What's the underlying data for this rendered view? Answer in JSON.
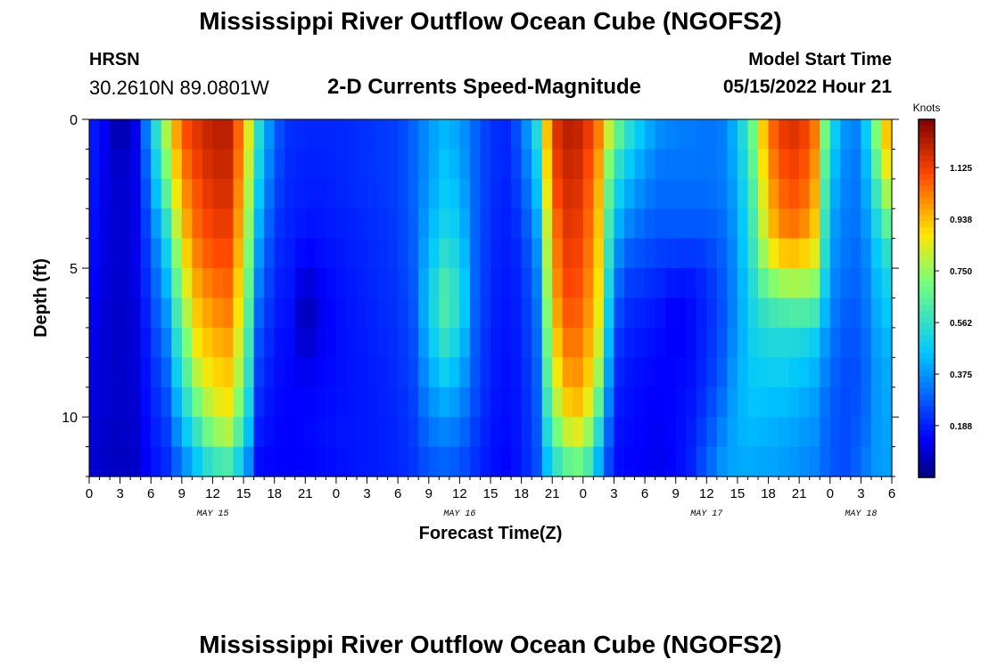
{
  "header": {
    "title": "Mississippi River Outflow Ocean Cube (NGOFS2)",
    "station_id": "HRSN",
    "station_coords": "30.2610N  89.0801W",
    "plot_subtitle": "2-D Currents Speed-Magnitude",
    "model_start_label": "Model Start Time",
    "model_start_value": "05/15/2022 Hour 21"
  },
  "footer": {
    "title": "Mississippi River Outflow Ocean Cube (NGOFS2)"
  },
  "chart_data": {
    "type": "heatmap",
    "title": "2-D Currents Speed-Magnitude",
    "xlabel": "Forecast Time(Z)",
    "ylabel": "Depth (ft)",
    "x_unit": "hours since May 15 00Z",
    "xlim": [
      0,
      78
    ],
    "ylim": [
      0,
      12
    ],
    "x_ticks": [
      0,
      3,
      6,
      9,
      12,
      15,
      18,
      21,
      24,
      27,
      30,
      33,
      36,
      39,
      42,
      45,
      48,
      51,
      54,
      57,
      60,
      63,
      66,
      69,
      72,
      75,
      78
    ],
    "x_tick_labels": [
      "0",
      "3",
      "6",
      "9",
      "12",
      "15",
      "18",
      "21",
      "0",
      "3",
      "6",
      "9",
      "12",
      "15",
      "18",
      "21",
      "0",
      "3",
      "6",
      "9",
      "12",
      "15",
      "18",
      "21",
      "0",
      "3",
      "6"
    ],
    "date_labels": [
      {
        "text": "MAY 15",
        "x": 12
      },
      {
        "text": "MAY 16",
        "x": 36
      },
      {
        "text": "MAY 17",
        "x": 60
      },
      {
        "text": "MAY 18",
        "x": 75
      }
    ],
    "y_ticks": [
      0,
      5,
      10
    ],
    "y_tick_labels": [
      "0",
      "5",
      "10"
    ],
    "colorbar": {
      "label": "Knots",
      "min": 0,
      "max": 1.3,
      "ticks": [
        0.188,
        0.375,
        0.562,
        0.75,
        0.938,
        1.125
      ],
      "tick_labels": [
        "0.188",
        "0.375",
        "0.562",
        "0.750",
        "0.938",
        "1.125"
      ]
    },
    "depths_ft": [
      0,
      1,
      2,
      3,
      4,
      5,
      6,
      7,
      8,
      9,
      10,
      11,
      12
    ],
    "speed_profiles": [
      {
        "x": 0,
        "values": [
          0.2,
          0.2,
          0.2,
          0.19,
          0.18,
          0.17,
          0.15,
          0.13,
          0.12,
          0.12,
          0.11,
          0.1,
          0.09
        ]
      },
      {
        "x": 1.5,
        "values": [
          0.13,
          0.13,
          0.12,
          0.12,
          0.11,
          0.11,
          0.1,
          0.1,
          0.09,
          0.09,
          0.09,
          0.08,
          0.08
        ]
      },
      {
        "x": 3,
        "values": [
          0.02,
          0.05,
          0.08,
          0.08,
          0.08,
          0.08,
          0.08,
          0.08,
          0.08,
          0.08,
          0.08,
          0.07,
          0.07
        ]
      },
      {
        "x": 4.5,
        "values": [
          0.12,
          0.12,
          0.12,
          0.12,
          0.12,
          0.12,
          0.11,
          0.1,
          0.1,
          0.1,
          0.09,
          0.09,
          0.08
        ]
      },
      {
        "x": 6,
        "values": [
          0.45,
          0.4,
          0.36,
          0.32,
          0.28,
          0.26,
          0.24,
          0.22,
          0.2,
          0.19,
          0.18,
          0.17,
          0.15
        ]
      },
      {
        "x": 7.5,
        "values": [
          0.8,
          0.75,
          0.7,
          0.6,
          0.52,
          0.46,
          0.4,
          0.36,
          0.32,
          0.28,
          0.25,
          0.22,
          0.2
        ]
      },
      {
        "x": 9,
        "values": [
          1.1,
          1.05,
          1.0,
          0.95,
          0.9,
          0.82,
          0.75,
          0.68,
          0.6,
          0.54,
          0.45,
          0.38,
          0.3
        ]
      },
      {
        "x": 10.5,
        "values": [
          1.15,
          1.15,
          1.1,
          1.08,
          1.05,
          1.0,
          0.95,
          0.9,
          0.85,
          0.75,
          0.65,
          0.52,
          0.42
        ]
      },
      {
        "x": 12,
        "values": [
          1.22,
          1.2,
          1.18,
          1.15,
          1.12,
          1.08,
          1.02,
          0.98,
          0.92,
          0.88,
          0.8,
          0.68,
          0.5
        ]
      },
      {
        "x": 13.5,
        "values": [
          1.22,
          1.2,
          1.18,
          1.15,
          1.12,
          1.08,
          1.05,
          1.0,
          0.95,
          0.9,
          0.85,
          0.72,
          0.52
        ]
      },
      {
        "x": 15,
        "values": [
          1.0,
          0.98,
          0.95,
          0.92,
          0.9,
          0.86,
          0.82,
          0.78,
          0.74,
          0.7,
          0.62,
          0.52,
          0.4
        ]
      },
      {
        "x": 16.5,
        "values": [
          0.55,
          0.52,
          0.48,
          0.44,
          0.4,
          0.36,
          0.32,
          0.28,
          0.25,
          0.22,
          0.2,
          0.17,
          0.15
        ]
      },
      {
        "x": 18,
        "values": [
          0.3,
          0.28,
          0.26,
          0.24,
          0.22,
          0.2,
          0.19,
          0.18,
          0.17,
          0.16,
          0.15,
          0.15,
          0.14
        ]
      },
      {
        "x": 19.5,
        "values": [
          0.22,
          0.21,
          0.2,
          0.2,
          0.19,
          0.18,
          0.17,
          0.16,
          0.15,
          0.15,
          0.14,
          0.14,
          0.14
        ]
      },
      {
        "x": 21,
        "values": [
          0.2,
          0.2,
          0.19,
          0.18,
          0.16,
          0.12,
          0.05,
          0.04,
          0.1,
          0.14,
          0.15,
          0.15,
          0.14
        ]
      },
      {
        "x": 22.5,
        "values": [
          0.2,
          0.2,
          0.19,
          0.18,
          0.17,
          0.15,
          0.12,
          0.12,
          0.14,
          0.15,
          0.16,
          0.16,
          0.15
        ]
      },
      {
        "x": 24,
        "values": [
          0.2,
          0.2,
          0.2,
          0.19,
          0.18,
          0.17,
          0.16,
          0.16,
          0.16,
          0.16,
          0.17,
          0.17,
          0.16
        ]
      },
      {
        "x": 27,
        "values": [
          0.22,
          0.22,
          0.22,
          0.21,
          0.2,
          0.2,
          0.19,
          0.19,
          0.18,
          0.18,
          0.18,
          0.18,
          0.18
        ]
      },
      {
        "x": 30,
        "values": [
          0.24,
          0.24,
          0.24,
          0.24,
          0.23,
          0.23,
          0.22,
          0.22,
          0.21,
          0.21,
          0.2,
          0.2,
          0.2
        ]
      },
      {
        "x": 31.5,
        "values": [
          0.3,
          0.3,
          0.3,
          0.3,
          0.29,
          0.29,
          0.28,
          0.27,
          0.26,
          0.25,
          0.24,
          0.23,
          0.22
        ]
      },
      {
        "x": 33,
        "values": [
          0.38,
          0.38,
          0.38,
          0.4,
          0.42,
          0.45,
          0.48,
          0.46,
          0.42,
          0.38,
          0.34,
          0.3,
          0.26
        ]
      },
      {
        "x": 34.5,
        "values": [
          0.42,
          0.44,
          0.46,
          0.48,
          0.52,
          0.58,
          0.63,
          0.6,
          0.52,
          0.44,
          0.38,
          0.32,
          0.28
        ]
      },
      {
        "x": 36,
        "values": [
          0.4,
          0.4,
          0.42,
          0.45,
          0.48,
          0.52,
          0.55,
          0.52,
          0.45,
          0.4,
          0.35,
          0.3,
          0.26
        ]
      },
      {
        "x": 37.5,
        "values": [
          0.3,
          0.3,
          0.3,
          0.3,
          0.3,
          0.3,
          0.3,
          0.29,
          0.28,
          0.27,
          0.25,
          0.23,
          0.21
        ]
      },
      {
        "x": 39,
        "values": [
          0.22,
          0.22,
          0.22,
          0.21,
          0.21,
          0.2,
          0.2,
          0.19,
          0.19,
          0.18,
          0.18,
          0.17,
          0.16
        ]
      },
      {
        "x": 40.5,
        "values": [
          0.2,
          0.2,
          0.2,
          0.19,
          0.19,
          0.18,
          0.18,
          0.17,
          0.17,
          0.16,
          0.16,
          0.15,
          0.15
        ]
      },
      {
        "x": 42,
        "values": [
          0.3,
          0.28,
          0.26,
          0.24,
          0.22,
          0.2,
          0.2,
          0.19,
          0.19,
          0.18,
          0.18,
          0.18,
          0.18
        ]
      },
      {
        "x": 43.5,
        "values": [
          0.55,
          0.5,
          0.46,
          0.42,
          0.38,
          0.35,
          0.33,
          0.31,
          0.3,
          0.29,
          0.28,
          0.27,
          0.26
        ]
      },
      {
        "x": 45,
        "values": [
          1.15,
          1.12,
          1.1,
          1.05,
          1.0,
          0.98,
          0.95,
          0.9,
          0.85,
          0.78,
          0.7,
          0.6,
          0.48
        ]
      },
      {
        "x": 46.5,
        "values": [
          1.22,
          1.2,
          1.18,
          1.16,
          1.14,
          1.12,
          1.1,
          1.06,
          1.02,
          0.96,
          0.88,
          0.75,
          0.58
        ]
      },
      {
        "x": 48,
        "values": [
          1.2,
          1.18,
          1.16,
          1.14,
          1.12,
          1.1,
          1.08,
          1.05,
          1.02,
          0.98,
          0.92,
          0.8,
          0.62
        ]
      },
      {
        "x": 49.5,
        "values": [
          1.05,
          1.0,
          0.96,
          0.94,
          0.92,
          0.9,
          0.88,
          0.85,
          0.8,
          0.72,
          0.6,
          0.48,
          0.38
        ]
      },
      {
        "x": 51,
        "values": [
          0.75,
          0.65,
          0.55,
          0.48,
          0.42,
          0.36,
          0.3,
          0.26,
          0.22,
          0.2,
          0.18,
          0.17,
          0.16
        ]
      },
      {
        "x": 52.5,
        "values": [
          0.58,
          0.5,
          0.44,
          0.38,
          0.32,
          0.26,
          0.22,
          0.2,
          0.18,
          0.17,
          0.16,
          0.15,
          0.14
        ]
      },
      {
        "x": 54,
        "values": [
          0.45,
          0.4,
          0.36,
          0.32,
          0.28,
          0.24,
          0.2,
          0.18,
          0.16,
          0.15,
          0.14,
          0.14,
          0.13
        ]
      },
      {
        "x": 55.5,
        "values": [
          0.38,
          0.34,
          0.32,
          0.3,
          0.26,
          0.22,
          0.18,
          0.16,
          0.15,
          0.14,
          0.14,
          0.13,
          0.13
        ]
      },
      {
        "x": 57,
        "values": [
          0.35,
          0.33,
          0.32,
          0.3,
          0.26,
          0.2,
          0.14,
          0.13,
          0.14,
          0.15,
          0.15,
          0.15,
          0.15
        ]
      },
      {
        "x": 58.5,
        "values": [
          0.34,
          0.33,
          0.32,
          0.3,
          0.26,
          0.2,
          0.16,
          0.16,
          0.16,
          0.17,
          0.18,
          0.19,
          0.2
        ]
      },
      {
        "x": 60,
        "values": [
          0.32,
          0.32,
          0.32,
          0.3,
          0.26,
          0.22,
          0.2,
          0.2,
          0.21,
          0.22,
          0.24,
          0.27,
          0.3
        ]
      },
      {
        "x": 61.5,
        "values": [
          0.34,
          0.34,
          0.34,
          0.32,
          0.3,
          0.28,
          0.27,
          0.27,
          0.28,
          0.3,
          0.33,
          0.36,
          0.38
        ]
      },
      {
        "x": 63,
        "values": [
          0.45,
          0.44,
          0.42,
          0.4,
          0.39,
          0.38,
          0.38,
          0.38,
          0.4,
          0.42,
          0.42,
          0.42,
          0.4
        ]
      },
      {
        "x": 64.5,
        "values": [
          0.7,
          0.68,
          0.65,
          0.62,
          0.6,
          0.56,
          0.52,
          0.5,
          0.48,
          0.46,
          0.44,
          0.42,
          0.4
        ]
      },
      {
        "x": 66,
        "values": [
          1.05,
          1.02,
          0.98,
          0.94,
          0.9,
          0.78,
          0.64,
          0.55,
          0.5,
          0.46,
          0.43,
          0.41,
          0.39
        ]
      },
      {
        "x": 67.5,
        "values": [
          1.15,
          1.12,
          1.08,
          1.05,
          1.0,
          0.85,
          0.68,
          0.55,
          0.5,
          0.46,
          0.42,
          0.4,
          0.38
        ]
      },
      {
        "x": 69,
        "values": [
          1.18,
          1.15,
          1.12,
          1.08,
          1.02,
          0.86,
          0.7,
          0.56,
          0.48,
          0.44,
          0.4,
          0.38,
          0.36
        ]
      },
      {
        "x": 70.5,
        "values": [
          1.05,
          1.02,
          0.98,
          0.95,
          0.9,
          0.8,
          0.68,
          0.52,
          0.45,
          0.4,
          0.38,
          0.36,
          0.34
        ]
      },
      {
        "x": 72,
        "values": [
          0.55,
          0.5,
          0.46,
          0.42,
          0.4,
          0.38,
          0.36,
          0.34,
          0.32,
          0.3,
          0.28,
          0.28,
          0.28
        ]
      },
      {
        "x": 73.5,
        "values": [
          0.38,
          0.36,
          0.35,
          0.34,
          0.33,
          0.32,
          0.3,
          0.28,
          0.27,
          0.26,
          0.26,
          0.26,
          0.26
        ]
      },
      {
        "x": 75,
        "values": [
          0.34,
          0.33,
          0.32,
          0.32,
          0.31,
          0.3,
          0.29,
          0.28,
          0.27,
          0.27,
          0.28,
          0.3,
          0.32
        ]
      },
      {
        "x": 76.5,
        "values": [
          0.75,
          0.7,
          0.62,
          0.55,
          0.48,
          0.44,
          0.42,
          0.4,
          0.38,
          0.38,
          0.38,
          0.38,
          0.38
        ]
      },
      {
        "x": 78,
        "values": [
          1.05,
          1.0,
          0.92,
          0.8,
          0.65,
          0.55,
          0.5,
          0.46,
          0.43,
          0.42,
          0.41,
          0.4,
          0.4
        ]
      }
    ]
  }
}
